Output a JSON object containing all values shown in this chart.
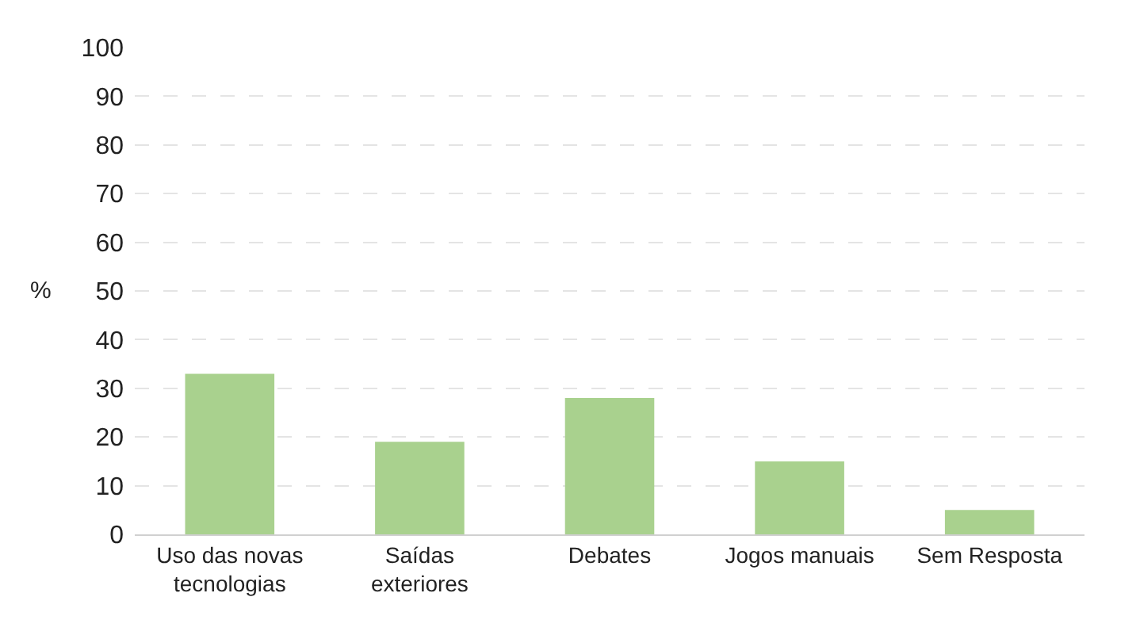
{
  "chart_data": {
    "type": "bar",
    "ylabel": "%",
    "categories": [
      "Uso das novas tecnologias",
      "Saídas exteriores",
      "Debates",
      "Jogos manuais",
      "Sem Resposta"
    ],
    "values": [
      33,
      19,
      28,
      15,
      5
    ],
    "color": "#a9d18e",
    "ylim": [
      0,
      100
    ],
    "yticks": [
      0,
      10,
      20,
      30,
      40,
      50,
      60,
      70,
      80,
      90,
      100
    ],
    "grid": "y",
    "legend": false
  }
}
